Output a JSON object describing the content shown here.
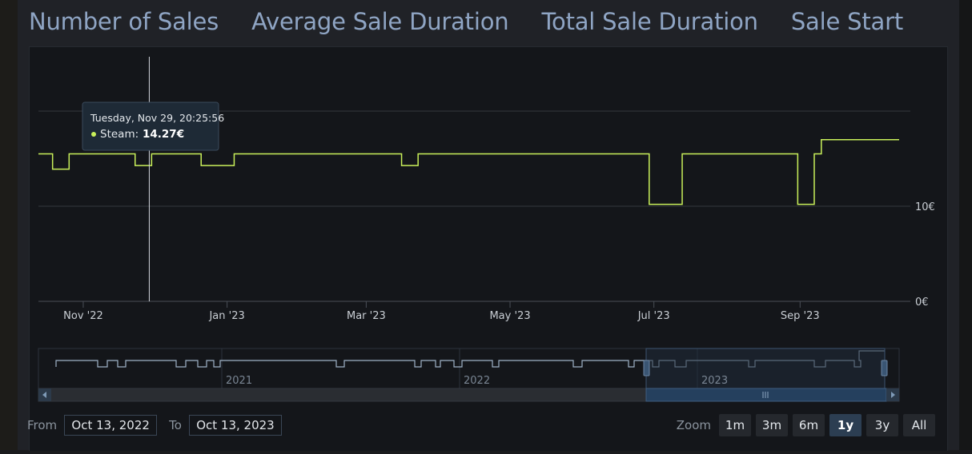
{
  "tabs": [
    {
      "label": "Number of Sales"
    },
    {
      "label": "Average Sale Duration"
    },
    {
      "label": "Total Sale Duration"
    },
    {
      "label": "Sale Start"
    }
  ],
  "colors": {
    "series": "#c9f05a",
    "navigator_line": "#9fb3c8",
    "navigator_selection": "#1f2b3a"
  },
  "chart_data": {
    "type": "line",
    "step": true,
    "series": [
      {
        "name": "Steam",
        "points": [
          [
            "2022-10-13",
            15.5
          ],
          [
            "2022-10-19",
            13.9
          ],
          [
            "2022-10-26",
            15.5
          ],
          [
            "2022-11-23",
            14.27
          ],
          [
            "2022-11-30",
            15.5
          ],
          [
            "2022-12-21",
            14.27
          ],
          [
            "2023-01-04",
            15.5
          ],
          [
            "2023-03-16",
            14.27
          ],
          [
            "2023-03-23",
            15.5
          ],
          [
            "2023-06-29",
            10.2
          ],
          [
            "2023-07-13",
            15.5
          ],
          [
            "2023-08-31",
            10.2
          ],
          [
            "2023-09-07",
            15.5
          ],
          [
            "2023-09-10",
            17.0
          ],
          [
            "2023-10-13",
            17.0
          ]
        ]
      }
    ],
    "x_range": [
      "2022-10-13",
      "2023-10-13"
    ],
    "x_ticks": [
      {
        "date": "2022-11-01",
        "label": "Nov '22"
      },
      {
        "date": "2023-01-01",
        "label": "Jan '23"
      },
      {
        "date": "2023-03-01",
        "label": "Mar '23"
      },
      {
        "date": "2023-05-01",
        "label": "May '23"
      },
      {
        "date": "2023-07-01",
        "label": "Jul '23"
      },
      {
        "date": "2023-09-01",
        "label": "Sep '23"
      }
    ],
    "y_ticks": [
      {
        "value": 0,
        "label": "0€"
      },
      {
        "value": 10,
        "label": "10€"
      },
      {
        "value": 20,
        "label": ""
      }
    ],
    "ylim": [
      0,
      20
    ],
    "grid": true,
    "crosshair_date": "2022-11-29",
    "tooltip": {
      "date": "Tuesday, Nov 29, 20:25:56",
      "series_label": "Steam:",
      "value_label": "14.27€"
    }
  },
  "navigator": {
    "labels": [
      "2021",
      "2022",
      "2023"
    ],
    "window": [
      "2022-10-13",
      "2023-10-13"
    ]
  },
  "range": {
    "from_label": "From",
    "from_value": "Oct 13, 2022",
    "to_label": "To",
    "to_value": "Oct 13, 2023"
  },
  "zoom": {
    "label": "Zoom",
    "options": [
      "1m",
      "3m",
      "6m",
      "1y",
      "3y",
      "All"
    ],
    "selected": "1y"
  }
}
